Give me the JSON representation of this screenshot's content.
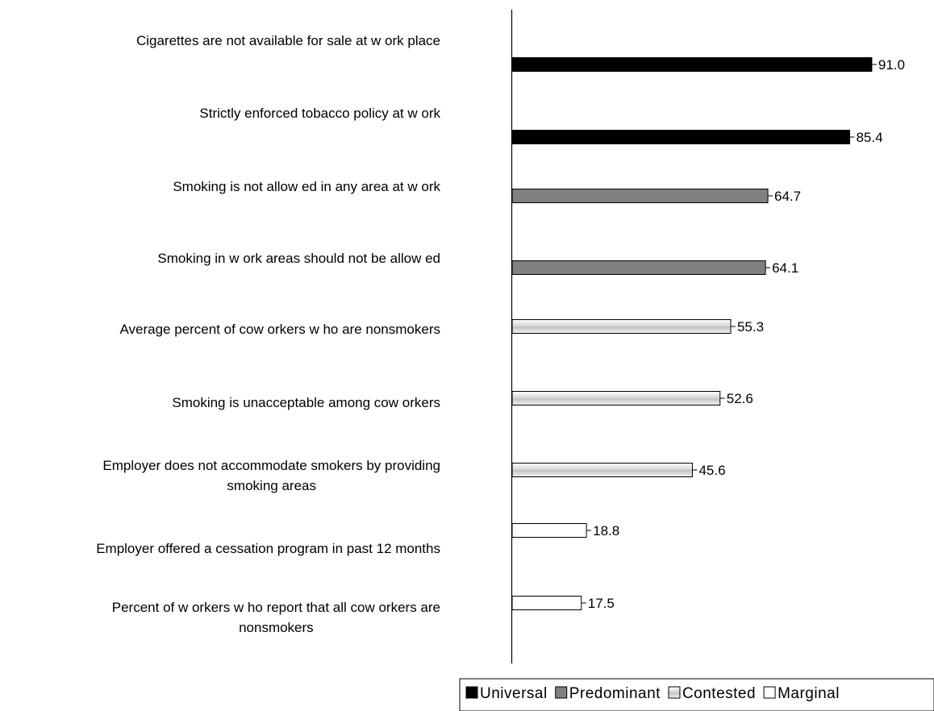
{
  "chart_data": {
    "type": "bar",
    "orientation": "horizontal",
    "title": "",
    "xlabel": "",
    "ylabel": "",
    "xlim": [
      0,
      100
    ],
    "grid": false,
    "legend_placement": "bottom-right",
    "categories": [
      [
        "Cigarettes are not available for sale at w ork place"
      ],
      [
        "Strictly enforced tobacco policy at w ork"
      ],
      [
        "Smoking is not allow ed in any area at w ork"
      ],
      [
        "Smoking in w ork areas should not be allow ed"
      ],
      [
        "Average percent of cow orkers w ho are nonsmokers"
      ],
      [
        "Smoking is unacceptable among cow orkers"
      ],
      [
        "Employer does not accommodate smokers by providing",
        "smoking areas"
      ],
      [
        "Employer offered a cessation program in past 12 months"
      ],
      [
        "Percent of w orkers w ho report that all cow orkers are",
        "nonsmokers"
      ]
    ],
    "values": [
      91.0,
      85.4,
      64.7,
      64.1,
      55.3,
      52.6,
      45.6,
      18.8,
      17.5
    ],
    "value_labels": [
      "91.0",
      "85.4",
      "64.7",
      "64.1",
      "55.3",
      "52.6",
      "45.6",
      "18.8",
      "17.5"
    ],
    "groups": [
      "Universal",
      "Universal",
      "Predominant",
      "Predominant",
      "Contested",
      "Contested",
      "Contested",
      "Marginal",
      "Marginal"
    ],
    "legend": [
      {
        "name": "Universal",
        "fill": "#000000"
      },
      {
        "name": "Predominant",
        "fill": "#808080"
      },
      {
        "name": "Contested",
        "fill": "gradient"
      },
      {
        "name": "Marginal",
        "fill": "#ffffff"
      }
    ]
  }
}
